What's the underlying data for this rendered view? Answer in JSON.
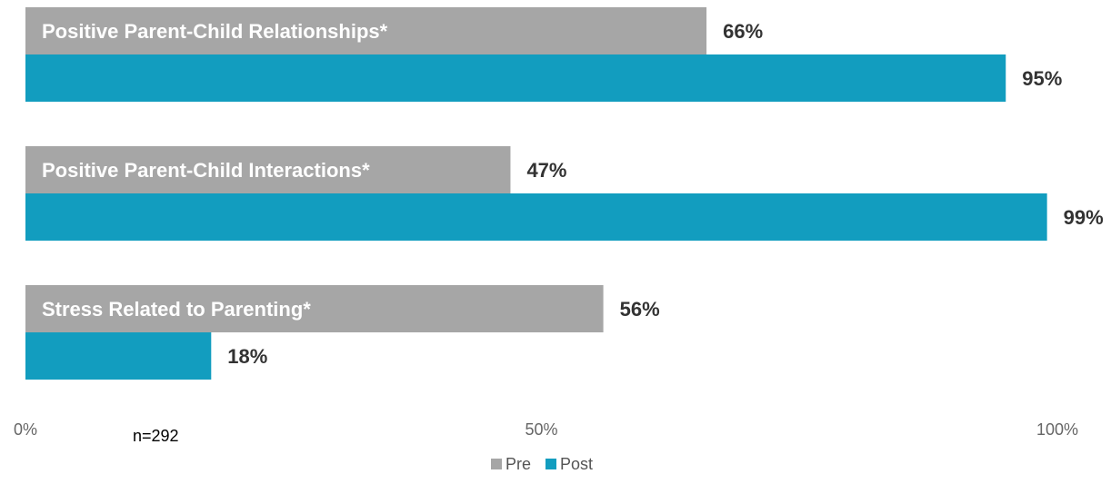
{
  "chart_data": {
    "type": "bar",
    "orientation": "horizontal",
    "categories": [
      "Positive Parent-Child Relationships*",
      "Positive Parent-Child Interactions*",
      "Stress Related to Parenting*"
    ],
    "series": [
      {
        "name": "Pre",
        "values": [
          66,
          47,
          56
        ],
        "labels": [
          "66%",
          "47%",
          "56%"
        ],
        "color": "#a6a6a6"
      },
      {
        "name": "Post",
        "values": [
          95,
          99,
          18
        ],
        "labels": [
          "95%",
          "99%",
          "18%"
        ],
        "color": "#129dbf"
      }
    ],
    "xlim": [
      0,
      100
    ],
    "x_ticks": [
      "0%",
      "50%",
      "100%"
    ],
    "grid": false,
    "legend_position": "bottom"
  },
  "note": "n=292"
}
